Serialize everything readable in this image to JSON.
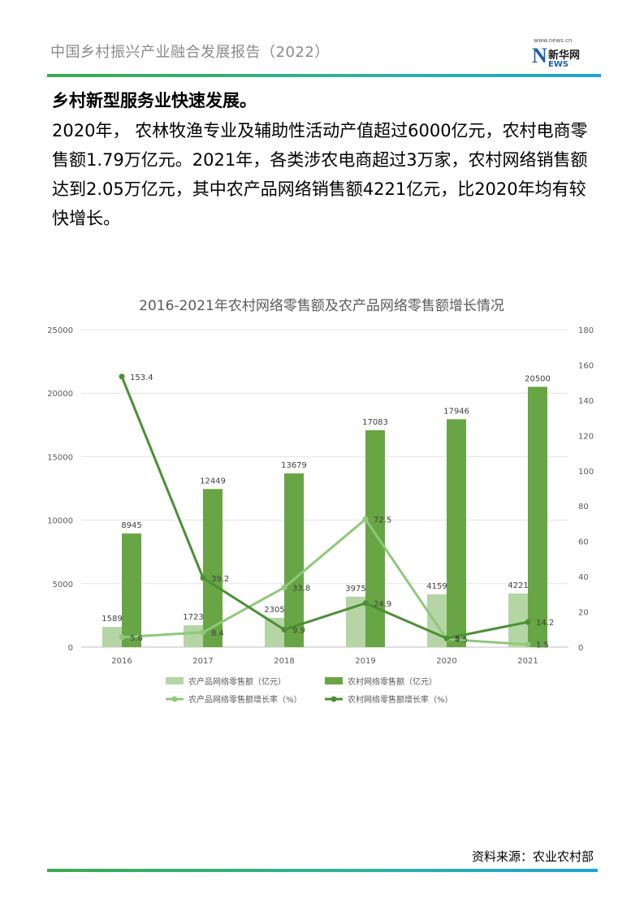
{
  "header": {
    "title": "中国乡村振兴产业融合发展报告（2022）"
  },
  "logo": {
    "site": "www.news.cn",
    "mark": "N",
    "brand": "新华网",
    "brand_sub": "EWS"
  },
  "content": {
    "heading": "乡村新型服务业快速发展。",
    "paragraph": "2020年， 农林牧渔专业及辅助性活动产值超过6000亿元，农村电商零售额1.79万亿元。2021年，各类涉农电商超过3万家，农村网络销售额达到2.05万亿元，其中农产品网络销售额4221亿元，比2020年均有较快增长。"
  },
  "footer": {
    "source": "资料来源：农业农村部"
  },
  "colors": {
    "light_green": "#b5d5a5",
    "dark_green": "#68a544",
    "line_light": "#8fc87a",
    "line_dark": "#4b8f35",
    "accent_bar": "#3aaa4f"
  },
  "chart_data": {
    "type": "bar",
    "title": "2016-2021年农村网络零售额及农产品网络零售额增长情况",
    "categories": [
      "2016",
      "2017",
      "2018",
      "2019",
      "2020",
      "2021"
    ],
    "left_axis": {
      "ylim": [
        0,
        25000
      ],
      "ticks": [
        0,
        5000,
        10000,
        15000,
        20000,
        25000
      ]
    },
    "right_axis": {
      "ylim": [
        0,
        180
      ],
      "ticks": [
        0,
        20,
        40,
        60,
        80,
        100,
        120,
        140,
        160,
        180
      ]
    },
    "grid": true,
    "legend_position": "bottom",
    "series": [
      {
        "name": "农产品网络零售额（亿元）",
        "kind": "bar",
        "axis": "left",
        "color": "#b5d5a5",
        "values": [
          1589,
          1723,
          2305,
          3975,
          4159,
          4221
        ]
      },
      {
        "name": "农村网络零售额（亿元）",
        "kind": "bar",
        "axis": "left",
        "color": "#68a544",
        "values": [
          8945,
          12449,
          13679,
          17083,
          17946,
          20500
        ]
      },
      {
        "name": "农产品网络零售额增长率（%）",
        "kind": "line",
        "axis": "right",
        "color": "#8fc87a",
        "values": [
          5.6,
          8.4,
          33.8,
          72.5,
          4.5,
          1.5
        ]
      },
      {
        "name": "农村网络零售额增长率（%）",
        "kind": "line",
        "axis": "right",
        "color": "#4b8f35",
        "values": [
          153.4,
          39.2,
          9.9,
          24.9,
          5,
          14.2
        ]
      }
    ]
  }
}
